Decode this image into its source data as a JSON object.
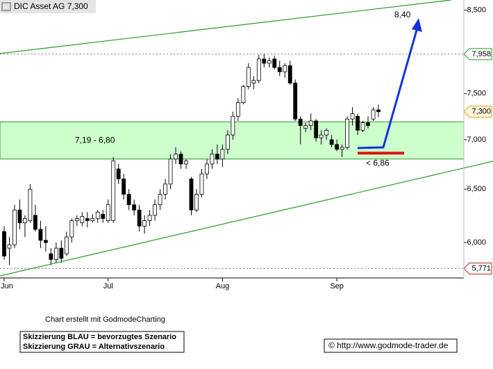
{
  "chart_data": {
    "type": "candlestick",
    "title": "DIC Asset AG 7,300",
    "log_scale": true,
    "ylim": [
      5.69,
      8.63
    ],
    "yticks": [
      {
        "value": 6.0,
        "label": "6,000"
      },
      {
        "value": 6.5,
        "label": "6,500"
      },
      {
        "value": 7.0,
        "label": "7,000"
      },
      {
        "value": 7.5,
        "label": "7,500"
      },
      {
        "value": 8.5,
        "label": "8,500"
      }
    ],
    "categories": [
      "Jun",
      null,
      null,
      null,
      null,
      null,
      null,
      null,
      null,
      null,
      null,
      null,
      null,
      null,
      null,
      null,
      null,
      null,
      null,
      null,
      "Jul",
      null,
      null,
      null,
      null,
      null,
      null,
      null,
      null,
      null,
      null,
      null,
      null,
      null,
      null,
      null,
      null,
      null,
      null,
      null,
      null,
      null,
      "Aug",
      null,
      null,
      null,
      null,
      null,
      null,
      null,
      null,
      null,
      null,
      null,
      null,
      null,
      null,
      null,
      null,
      null,
      null,
      null,
      null,
      null,
      "Sep",
      null,
      null,
      null,
      null,
      null,
      null,
      null,
      null
    ],
    "up_color": "#ffffff",
    "down_color": "#000000",
    "open": [
      6.1,
      5.95,
      5.98,
      6.3,
      6.18,
      6.2,
      6.25,
      6.12,
      6.02,
      5.9,
      5.85,
      5.95,
      5.9,
      6.05,
      6.2,
      6.18,
      6.22,
      6.2,
      6.22,
      6.26,
      6.2,
      6.2,
      6.7,
      6.6,
      6.45,
      6.35,
      6.3,
      6.15,
      6.2,
      6.25,
      6.35,
      6.45,
      6.55,
      6.8,
      6.85,
      6.75,
      6.6,
      6.3,
      6.45,
      6.65,
      6.75,
      6.85,
      6.8,
      6.9,
      7.05,
      7.25,
      7.4,
      7.58,
      7.62,
      7.65,
      7.9,
      7.85,
      7.9,
      7.8,
      7.75,
      7.82,
      7.62,
      7.22,
      7.12,
      7.15,
      7.2,
      7.02,
      7.05,
      7.0,
      6.95,
      6.9,
      6.92,
      7.22,
      7.25,
      7.1,
      7.18,
      7.22,
      7.32
    ],
    "high": [
      6.15,
      6.05,
      6.35,
      6.4,
      6.25,
      6.55,
      6.35,
      6.2,
      6.15,
      5.95,
      6.0,
      6.02,
      6.1,
      6.22,
      6.25,
      6.28,
      6.28,
      6.26,
      6.3,
      6.3,
      6.4,
      6.82,
      6.75,
      6.65,
      6.5,
      6.4,
      6.35,
      6.25,
      6.3,
      6.4,
      6.5,
      6.6,
      6.85,
      6.92,
      6.88,
      6.8,
      6.62,
      6.5,
      6.7,
      6.8,
      6.9,
      6.95,
      6.95,
      7.1,
      7.3,
      7.45,
      7.6,
      7.85,
      7.7,
      7.95,
      7.96,
      7.92,
      7.94,
      7.88,
      7.85,
      7.88,
      7.66,
      7.25,
      7.18,
      7.28,
      7.22,
      7.1,
      7.12,
      7.05,
      7.0,
      6.95,
      7.25,
      7.35,
      7.28,
      7.2,
      7.25,
      7.35,
      7.38
    ],
    "low": [
      5.85,
      5.8,
      5.95,
      6.12,
      6.05,
      6.18,
      6.1,
      5.95,
      5.92,
      5.8,
      5.82,
      5.82,
      5.88,
      6.0,
      6.15,
      6.15,
      6.14,
      6.18,
      6.18,
      6.18,
      6.18,
      6.18,
      6.55,
      6.4,
      6.3,
      6.25,
      6.1,
      6.08,
      6.15,
      6.2,
      6.3,
      6.4,
      6.5,
      6.75,
      6.7,
      6.7,
      6.25,
      6.28,
      6.42,
      6.6,
      6.7,
      6.75,
      6.72,
      6.85,
      7.0,
      7.2,
      7.38,
      7.55,
      7.55,
      7.62,
      7.8,
      7.8,
      7.78,
      7.7,
      7.68,
      7.6,
      7.2,
      6.95,
      7.08,
      7.1,
      6.98,
      6.95,
      7.0,
      6.92,
      6.88,
      6.82,
      6.9,
      7.15,
      7.05,
      7.08,
      7.12,
      7.2,
      7.24
    ],
    "close": [
      5.88,
      5.98,
      6.3,
      6.18,
      6.22,
      6.5,
      6.12,
      6.02,
      6.0,
      5.85,
      5.95,
      5.86,
      6.05,
      6.2,
      6.22,
      6.24,
      6.2,
      6.22,
      6.28,
      6.22,
      6.35,
      6.78,
      6.6,
      6.45,
      6.35,
      6.3,
      6.15,
      6.2,
      6.25,
      6.35,
      6.45,
      6.55,
      6.8,
      6.85,
      6.75,
      6.78,
      6.3,
      6.45,
      6.65,
      6.75,
      6.85,
      6.8,
      6.9,
      7.05,
      7.25,
      7.4,
      7.58,
      7.8,
      7.65,
      7.9,
      7.85,
      7.88,
      7.8,
      7.75,
      7.82,
      7.62,
      7.22,
      7.15,
      7.15,
      7.2,
      7.02,
      7.05,
      7.1,
      6.95,
      6.9,
      6.92,
      7.22,
      7.28,
      7.1,
      7.18,
      7.15,
      7.32,
      7.3
    ],
    "zone": {
      "from": 6.8,
      "to": 7.19,
      "label": "7,19 - 6,80",
      "color": "#ccffcc"
    },
    "price_tags": [
      {
        "value": 7.958,
        "label": "7,958"
      },
      {
        "value": 7.3,
        "label": "7,300"
      },
      {
        "value": 5.771,
        "label": "5,771"
      }
    ],
    "target": {
      "value": 8.4,
      "label": "8,40",
      "color": "#1133dd"
    },
    "stop": {
      "value": 6.86,
      "label": "< 6,86",
      "color": "#dd1111"
    },
    "footer": {
      "credit": "Chart erstellt mit GodmodeCharting",
      "legend_blue": "Skizzierung BLAU = bevorzugtes Szenario",
      "legend_grey": "Skizzierung GRAU = Alternativszenario",
      "url": "© http://www.godmode-trader.de"
    }
  }
}
